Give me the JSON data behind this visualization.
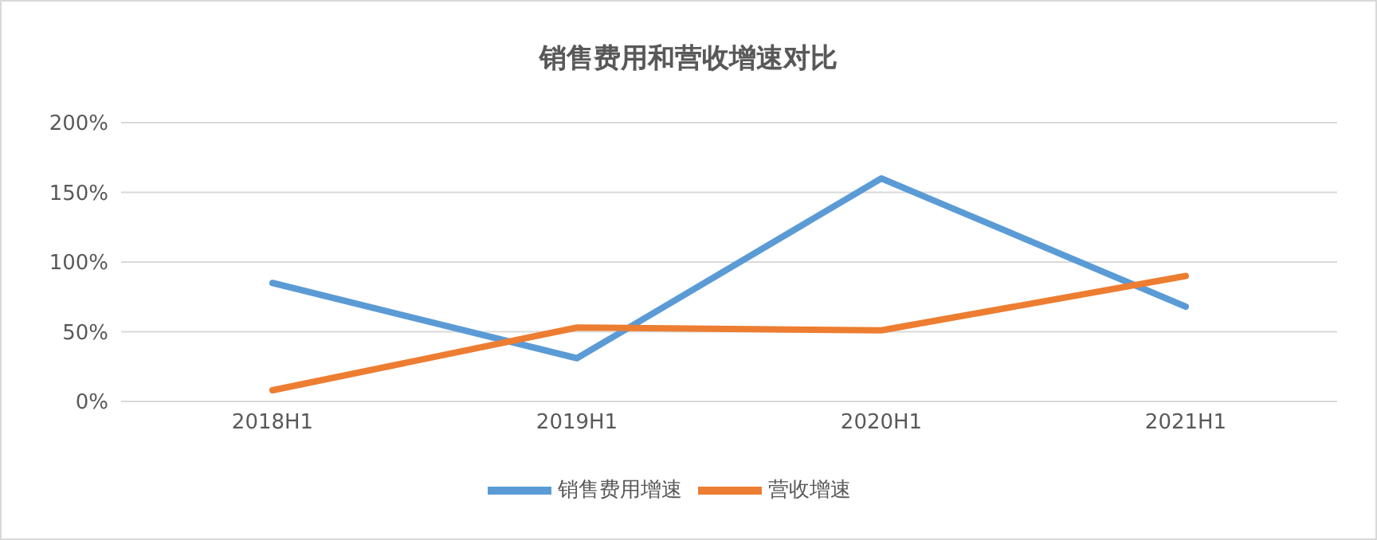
{
  "chart_data": {
    "type": "line",
    "title": "销售费用和营收增速对比",
    "categories": [
      "2018H1",
      "2019H1",
      "2020H1",
      "2021H1"
    ],
    "series": [
      {
        "name": "销售费用增速",
        "color": "#5b9bd5",
        "values": [
          85,
          31,
          160,
          68
        ]
      },
      {
        "name": "营收增速",
        "color": "#ed7d31",
        "values": [
          8,
          53,
          51,
          90
        ]
      }
    ],
    "ylim": [
      0,
      200
    ],
    "yticks": [
      {
        "value": 0,
        "label": "0%"
      },
      {
        "value": 50,
        "label": "50%"
      },
      {
        "value": 100,
        "label": "100%"
      },
      {
        "value": 150,
        "label": "150%"
      },
      {
        "value": 200,
        "label": "200%"
      }
    ],
    "grid": "y",
    "legend": "bottom",
    "marker": "none",
    "line_style": "solid"
  }
}
